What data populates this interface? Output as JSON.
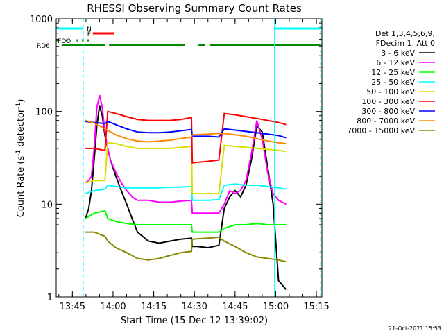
{
  "chart_data": {
    "type": "line",
    "title": "RHESSI Observing Summary Count Rates",
    "xlabel": "Start Time (15-Dec-12 13:39:02)",
    "ylabel_main": "Count Rate (s",
    "ylabel_sup1": "-1",
    "ylabel_mid": " detector",
    "ylabel_sup2": "-1",
    "ylabel_end": ")",
    "y_scale": "log",
    "ylim": [
      1,
      1000
    ],
    "xlim_minutes": [
      0,
      98
    ],
    "x_ticks": [
      {
        "label": "13:45",
        "minutes": 5.97
      },
      {
        "label": "14:00",
        "minutes": 20.97
      },
      {
        "label": "14:15",
        "minutes": 35.97
      },
      {
        "label": "14:30",
        "minutes": 50.97
      },
      {
        "label": "14:45",
        "minutes": 65.97
      },
      {
        "label": "15:00",
        "minutes": 80.97
      },
      {
        "label": "15:15",
        "minutes": 95.97
      }
    ],
    "y_ticks": [
      {
        "label": "1",
        "value": 1
      },
      {
        "label": "10",
        "value": 10
      },
      {
        "label": "100",
        "value": 100
      },
      {
        "label": "1000",
        "value": 1000
      }
    ],
    "legend_header": [
      "Det 1,3,4,5,6,9,",
      "FDecim 1, Att 0"
    ],
    "series": [
      {
        "name": "3 - 6 keV",
        "color": "#000000",
        "x": [
          10.8,
          12,
          13,
          14,
          15,
          16,
          17,
          18,
          19,
          20,
          22,
          24,
          26,
          28,
          30,
          34,
          38,
          42,
          46,
          49.9,
          50.2,
          52,
          56,
          58,
          60,
          62,
          64,
          66,
          68,
          70,
          72,
          74,
          76,
          78,
          80,
          82,
          84.8
        ],
        "y": [
          7,
          9,
          14,
          30,
          70,
          115,
          90,
          55,
          40,
          30,
          20,
          14,
          10,
          7,
          5,
          4,
          3.8,
          4,
          4.2,
          4.3,
          3.5,
          3.5,
          3.4,
          3.5,
          3.6,
          9,
          12,
          14,
          12,
          16,
          30,
          70,
          60,
          25,
          10,
          1.5,
          1.2
        ]
      },
      {
        "name": "6 - 12 keV",
        "color": "#ff00ff",
        "x": [
          10.8,
          12,
          13,
          14,
          15,
          16,
          17,
          18,
          19,
          20,
          22,
          24,
          26,
          28,
          30,
          34,
          38,
          42,
          46,
          49.9,
          50.2,
          56,
          60,
          62,
          64,
          66,
          68,
          70,
          72,
          74,
          76,
          78,
          80,
          82,
          84.8
        ],
        "y": [
          17,
          18,
          20,
          40,
          110,
          150,
          110,
          60,
          40,
          30,
          22,
          17,
          14,
          12,
          11,
          11,
          10.5,
          10.5,
          10.8,
          11,
          8,
          8,
          8,
          10,
          14,
          13,
          14,
          18,
          35,
          80,
          50,
          22,
          13,
          11,
          10
        ]
      },
      {
        "name": "12 - 25 keV",
        "color": "#00ff00",
        "x": [
          10.8,
          14,
          18,
          19,
          22,
          26,
          30,
          34,
          38,
          42,
          46,
          49.9,
          50.2,
          56,
          60,
          62,
          66,
          70,
          74,
          78,
          84.8
        ],
        "y": [
          7,
          8,
          8.5,
          7,
          6.5,
          6.2,
          6,
          6,
          6,
          6,
          6,
          6,
          5,
          5,
          5,
          5.5,
          6,
          6,
          6.2,
          6,
          6
        ]
      },
      {
        "name": "25 - 50 keV",
        "color": "#00ffff",
        "x": [
          10.8,
          14,
          18,
          19,
          22,
          26,
          30,
          34,
          38,
          42,
          46,
          49.9,
          50.2,
          56,
          60,
          62,
          66,
          70,
          74,
          78,
          82,
          84.8
        ],
        "y": [
          13,
          14,
          14.5,
          16,
          15.5,
          15,
          15,
          15,
          15,
          15.2,
          15.3,
          15.5,
          11,
          11,
          11.2,
          16,
          16.5,
          16,
          16,
          15.5,
          15,
          14.5
        ]
      },
      {
        "name": "50 - 100 keV",
        "color": "#dddd00",
        "x": [
          10.8,
          14,
          18,
          19,
          22,
          26,
          30,
          34,
          38,
          42,
          46,
          49.9,
          50.2,
          56,
          60,
          62,
          66,
          70,
          74,
          78,
          82,
          84.8
        ],
        "y": [
          17,
          18,
          18,
          46,
          45,
          42,
          40,
          40,
          40,
          40,
          41,
          42,
          13,
          13,
          13,
          43,
          42,
          41,
          40,
          39,
          38,
          37
        ]
      },
      {
        "name": "100 - 300 keV",
        "color": "#ff0000",
        "x": [
          10.8,
          14,
          18,
          19,
          22,
          26,
          30,
          34,
          38,
          42,
          46,
          49.9,
          50.2,
          56,
          60,
          62,
          66,
          70,
          74,
          78,
          82,
          84.8
        ],
        "y": [
          40,
          40,
          38,
          100,
          95,
          88,
          82,
          80,
          80,
          80,
          82,
          86,
          28,
          29,
          30,
          95,
          92,
          88,
          84,
          80,
          76,
          72
        ]
      },
      {
        "name": "300 - 800 keV",
        "color": "#0000ff",
        "x": [
          10.8,
          14,
          18,
          19,
          22,
          26,
          30,
          34,
          38,
          42,
          46,
          49.9,
          50.2,
          56,
          60,
          62,
          66,
          70,
          74,
          78,
          82,
          84.8
        ],
        "y": [
          78,
          76,
          74,
          78,
          72,
          65,
          60,
          59,
          59,
          60,
          62,
          64,
          54,
          54,
          53,
          65,
          63,
          61,
          59,
          57,
          55,
          52
        ]
      },
      {
        "name": "800 - 7000 keV",
        "color": "#ff8800",
        "x": [
          10.8,
          14,
          18,
          22,
          26,
          30,
          34,
          38,
          42,
          46,
          49.9,
          50.2,
          56,
          60,
          62,
          66,
          70,
          74,
          78,
          82,
          84.8
        ],
        "y": [
          80,
          75,
          65,
          56,
          51,
          48,
          47,
          48,
          49,
          51,
          53,
          56,
          57,
          58,
          58,
          56,
          54,
          51,
          48,
          46,
          45
        ]
      },
      {
        "name": "7000 - 15000 keV",
        "color": "#888800",
        "x": [
          10.8,
          14,
          18,
          19,
          22,
          26,
          30,
          34,
          38,
          42,
          46,
          49.9,
          50.2,
          56,
          60,
          62,
          66,
          70,
          74,
          78,
          82,
          84.8
        ],
        "y": [
          5,
          5,
          4.5,
          4,
          3.4,
          3,
          2.6,
          2.5,
          2.6,
          2.8,
          3,
          3.1,
          4.2,
          4.3,
          4.4,
          4,
          3.5,
          3,
          2.7,
          2.6,
          2.5,
          2.4
        ]
      }
    ],
    "flags": [
      {
        "label": "N",
        "color": "#00ffff",
        "segments": [
          [
            0,
            10
          ],
          [
            80.5,
            98
          ]
        ]
      },
      {
        "label": "F",
        "color": "#ff0000",
        "segments": [
          [
            13.5,
            21.5
          ]
        ]
      },
      {
        "label": "FDO",
        "color": "#008800",
        "segments": [
          [
            0,
            0.8
          ],
          [
            3.5,
            4.2
          ],
          [
            7.5,
            8.2
          ],
          [
            9.5,
            10.2
          ],
          [
            11.5,
            12.2
          ]
        ]
      },
      {
        "label": "RD6",
        "color": "#008800",
        "segments": [
          [
            2,
            18
          ],
          [
            19.5,
            47.5
          ],
          [
            52.5,
            55
          ],
          [
            56.5,
            98
          ]
        ]
      }
    ],
    "markers": [
      {
        "minutes": 0,
        "color": "#00ffff",
        "style": "solid"
      },
      {
        "minutes": 10,
        "color": "#00ffff",
        "style": "dashed"
      },
      {
        "minutes": 80.5,
        "color": "#00ffff",
        "style": "solid"
      },
      {
        "minutes": 97.5,
        "color": "#00ffff",
        "style": "dashed"
      }
    ],
    "footer_date": "21-Oct-2021 15:53"
  }
}
